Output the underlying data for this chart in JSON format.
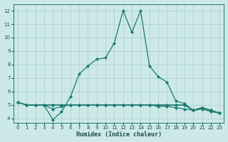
{
  "xlabel": "Humidex (Indice chaleur)",
  "bg_color": "#cce9e8",
  "grid_color": "#b0d4d2",
  "line_color": "#1a7a6e",
  "marker_color": "#1a7a6e",
  "xlim": [
    -0.5,
    23.5
  ],
  "ylim": [
    3.7,
    12.5
  ],
  "xticks": [
    0,
    1,
    2,
    3,
    4,
    5,
    6,
    7,
    8,
    9,
    10,
    11,
    12,
    13,
    14,
    15,
    16,
    17,
    18,
    19,
    20,
    21,
    22,
    23
  ],
  "yticks": [
    4,
    5,
    6,
    7,
    8,
    9,
    10,
    11,
    12
  ],
  "main_x": [
    0,
    1,
    2,
    3,
    4,
    5,
    6,
    7,
    8,
    9,
    10,
    11,
    12,
    13,
    14,
    15,
    16,
    17,
    18,
    19,
    20,
    21,
    22,
    23
  ],
  "main_y": [
    5.2,
    5.0,
    5.0,
    5.0,
    3.9,
    4.5,
    5.6,
    7.3,
    7.9,
    8.4,
    8.5,
    9.6,
    12.0,
    10.4,
    12.0,
    7.9,
    7.1,
    6.7,
    5.3,
    5.1,
    4.6,
    4.8,
    4.6,
    4.4
  ],
  "flat1_x": [
    0,
    1,
    2,
    3,
    4,
    5,
    6,
    7,
    8,
    9,
    10,
    11,
    12,
    13,
    14,
    15,
    16,
    17,
    18,
    19,
    20,
    21,
    22,
    23
  ],
  "flat1_y": [
    5.2,
    5.0,
    5.0,
    5.0,
    5.0,
    5.0,
    5.0,
    5.0,
    5.0,
    5.0,
    5.0,
    5.0,
    5.0,
    5.0,
    5.0,
    5.0,
    5.0,
    5.0,
    5.0,
    5.0,
    4.6,
    4.8,
    4.6,
    4.4
  ],
  "flat2_x": [
    0,
    1,
    2,
    3,
    4,
    5,
    6,
    7,
    8,
    9,
    10,
    11,
    12,
    13,
    14,
    15,
    16,
    17,
    18,
    19,
    20,
    21,
    22,
    23
  ],
  "flat2_y": [
    5.2,
    5.0,
    5.0,
    5.0,
    4.7,
    4.9,
    5.0,
    5.0,
    5.0,
    5.0,
    5.0,
    5.0,
    5.0,
    5.0,
    5.0,
    5.0,
    5.0,
    5.0,
    5.0,
    5.0,
    4.6,
    4.8,
    4.6,
    4.4
  ],
  "flat3_x": [
    0,
    1,
    2,
    3,
    4,
    5,
    6,
    7,
    8,
    9,
    10,
    11,
    12,
    13,
    14,
    15,
    16,
    17,
    18,
    19,
    20,
    21,
    22,
    23
  ],
  "flat3_y": [
    5.2,
    5.0,
    5.0,
    5.0,
    5.0,
    5.0,
    5.0,
    5.0,
    5.0,
    5.0,
    5.0,
    5.0,
    5.0,
    5.0,
    5.0,
    5.0,
    4.9,
    4.9,
    4.8,
    4.7,
    4.6,
    4.7,
    4.5,
    4.4
  ]
}
